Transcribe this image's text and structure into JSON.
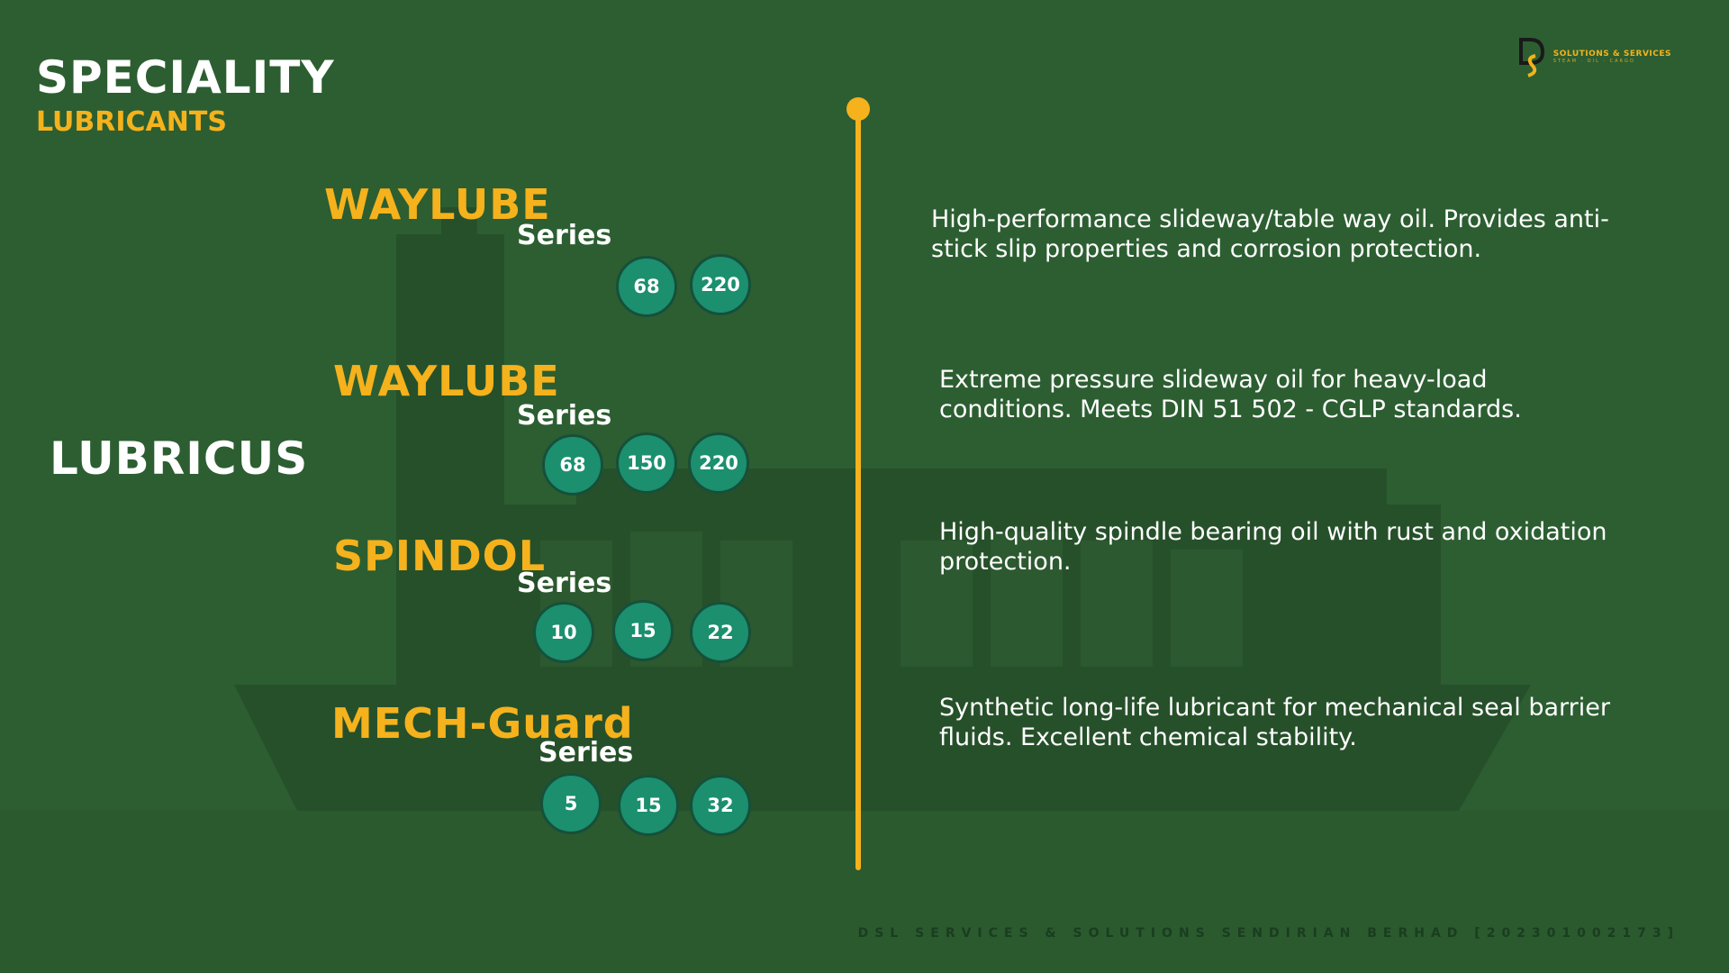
{
  "heading": {
    "main": "SPECIALITY",
    "sub": "LUBRICANTS"
  },
  "brand": "LUBRICUS",
  "logo": {
    "name": "SOLUTIONS & SERVICES",
    "tagline": "STEAM · OIL · CARGO"
  },
  "products": [
    {
      "name": "WAYLUBE",
      "series_label": "Series",
      "grades": [
        "68",
        "220"
      ],
      "description": "High-performance slideway/table way oil. Provides anti-stick slip properties and corrosion protection."
    },
    {
      "name": "WAYLUBE",
      "series_label": "Series",
      "grades": [
        "68",
        "150",
        "220"
      ],
      "description": "Extreme pressure slideway oil for heavy-load conditions. Meets DIN 51 502 - CGLP standards."
    },
    {
      "name": "SPINDOL",
      "series_label": "Series",
      "grades": [
        "10",
        "15",
        "22"
      ],
      "description": "High-quality spindle bearing oil with rust and oxidation protection."
    },
    {
      "name": "MECH-Guard",
      "series_label": "Series",
      "grades": [
        "5",
        "15",
        "32"
      ],
      "description": "Synthetic long-life lubricant for mechanical seal barrier fluids. Excellent chemical stability."
    }
  ],
  "footer": "DSL SERVICES & SOLUTIONS SENDIRIAN BERHAD [202301002173]",
  "colors": {
    "background": "#2c5e31",
    "accent": "#f5b21c",
    "grade_badge": "#1b8f6e",
    "text": "#ffffff"
  }
}
